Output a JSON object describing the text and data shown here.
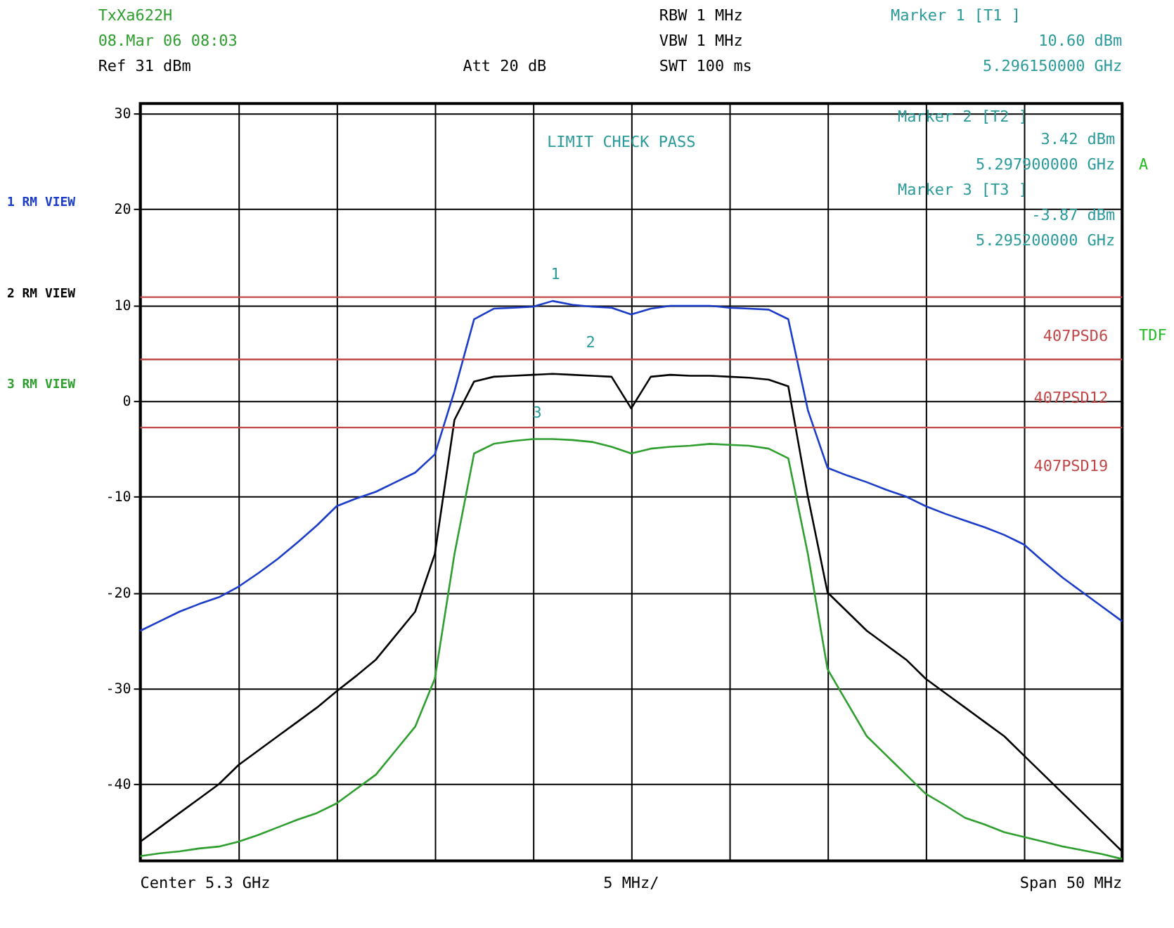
{
  "chart_data": {
    "type": "line",
    "categories": [
      null,
      null,
      null,
      null,
      null,
      null,
      null,
      null,
      null,
      null,
      null,
      null,
      null,
      null,
      null,
      null,
      null,
      null,
      null,
      null,
      null,
      null,
      null,
      null,
      null,
      null,
      null,
      null,
      null,
      null,
      null,
      null,
      null,
      null,
      null,
      null,
      null,
      null,
      null,
      null,
      null,
      null,
      null,
      null,
      null,
      null,
      null,
      null,
      null,
      null,
      null
    ],
    "series": [
      {
        "name": "1 RM VIEW",
        "color": "#1a3cc8",
        "values": [
          -24,
          -23,
          -22,
          -21.2,
          -20.5,
          -19.4,
          -18,
          -16.5,
          -14.8,
          -13,
          -11,
          -10.2,
          -9.5,
          -8.5,
          -7.5,
          -5.6,
          1,
          8.5,
          9.6,
          9.7,
          9.8,
          10.4,
          10,
          9.8,
          9.7,
          9,
          9.6,
          9.9,
          9.9,
          9.9,
          9.7,
          9.6,
          9.5,
          8.5,
          -1,
          -7,
          -7.8,
          -8.5,
          -9.3,
          -10,
          -11,
          -11.8,
          -12.5,
          -13.2,
          -14,
          -15,
          -16.8,
          -18.5,
          -20,
          -21.5,
          -23
        ]
      },
      {
        "name": "2 RM VIEW",
        "color": "#000000",
        "values": [
          -46,
          -44.5,
          -43,
          -41.5,
          -40,
          -38,
          -36.5,
          -35,
          -33.5,
          -32,
          -30.3,
          -28.7,
          -27,
          -24.5,
          -22,
          -16,
          -2,
          2,
          2.5,
          2.6,
          2.7,
          2.8,
          2.7,
          2.6,
          2.5,
          -0.8,
          2.5,
          2.7,
          2.6,
          2.6,
          2.5,
          2.4,
          2.2,
          1.5,
          -10,
          -20,
          -22,
          -24,
          -25.5,
          -27,
          -29,
          -30.5,
          -32,
          -33.5,
          -35,
          -37,
          -39,
          -41,
          -43,
          -45,
          -47
        ]
      },
      {
        "name": "3 RM VIEW",
        "color": "#2e9e2e",
        "values": [
          -47.5,
          -47.2,
          -47,
          -46.7,
          -46.5,
          -46,
          -45.3,
          -44.5,
          -43.7,
          -43,
          -42,
          -40.5,
          -39,
          -36.5,
          -34,
          -29,
          -16,
          -5.5,
          -4.5,
          -4.2,
          -4,
          -4,
          -4.1,
          -4.3,
          -4.8,
          -5.5,
          -5,
          -4.8,
          -4.7,
          -4.5,
          -4.6,
          -4.7,
          -5,
          -6,
          -16,
          -28,
          -31.5,
          -35,
          -37,
          -39,
          -41,
          -42.2,
          -43.5,
          -44.2,
          -45,
          -45.5,
          -46,
          -46.5,
          -46.9,
          -47.3,
          -47.8
        ]
      }
    ],
    "ylim": [
      -48,
      31
    ],
    "yticks": [
      30,
      20,
      10,
      0,
      -10,
      -20,
      -30,
      -40
    ],
    "tick_labels": "y",
    "grid": true,
    "marker": "none",
    "line_style": "solid",
    "ref_lines": [
      {
        "axis": "y",
        "value": 10.8,
        "label": "407PSD6",
        "color": "#c04848"
      },
      {
        "axis": "y",
        "value": 4.3,
        "label": "407PSD12",
        "color": "#c04848"
      },
      {
        "axis": "y",
        "value": -2.8,
        "label": "407PSD19",
        "color": "#c04848"
      }
    ],
    "annotations": [
      "TxXa622H",
      "08.Mar 06 08:03",
      "Ref 31 dBm",
      "Att 20 dB",
      "RBW 1 MHz",
      "VBW 1 MHz",
      "SWT 100 ms",
      "Marker 1 [T1 ]",
      "10.60 dBm",
      "5.296150000 GHz",
      "Marker 2 [T2 ]",
      "3.42 dBm",
      "5.297900000 GHz",
      "Marker 3 [T3 ]",
      "-3.87 dBm",
      "5.295200000 GHz",
      "LIMIT CHECK PASS",
      "A",
      "TDF",
      "Center 5.3 GHz",
      "5 MHz/",
      "Span 50 MHz",
      "1",
      "2",
      "3"
    ]
  }
}
